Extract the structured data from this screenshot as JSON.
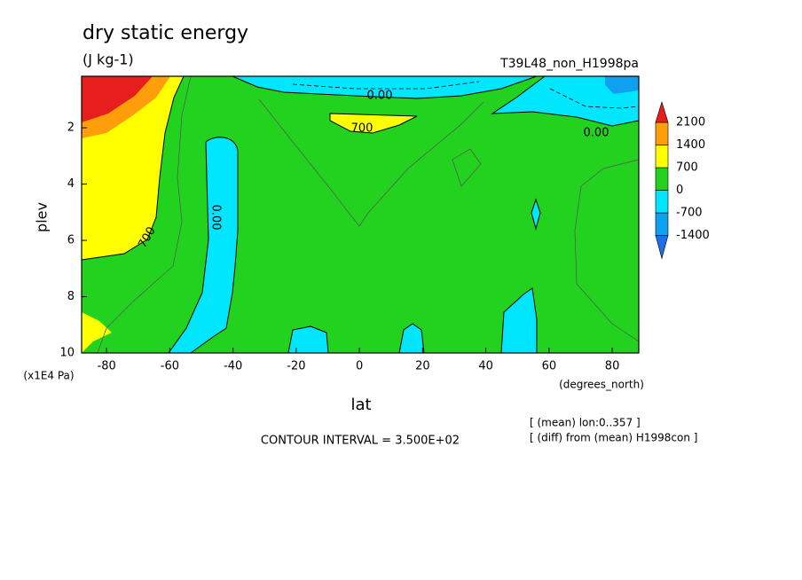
{
  "chart_data": {
    "type": "contour",
    "title": "dry static energy",
    "subtitle": "(J kg-1)",
    "run_label": "T39L48_non_H1998pa",
    "x_label": "lat",
    "x_unit": "(degrees_north)",
    "y_label": "plev",
    "y_unit": "(x1E4 Pa)",
    "xlim": [
      -87.9,
      88.4
    ],
    "xticks": [
      -80,
      -60,
      -40,
      -20,
      0,
      20,
      40,
      60,
      80
    ],
    "ylim": [
      0.17,
      10
    ],
    "y_inverted": true,
    "yticks": [
      2,
      4,
      6,
      8,
      10
    ],
    "levels": [
      -1400,
      -700,
      0,
      700,
      1400,
      2100
    ],
    "colors": [
      "#1e6ee6",
      "#10a0f0",
      "#00e6ff",
      "#22d21e",
      "#ffff00",
      "#ff9e0a",
      "#e61e1e"
    ],
    "contour_labels": [
      "0.00",
      "700",
      "0.00",
      "0.00",
      "700"
    ],
    "contour_interval": "CONTOUR INTERVAL = 3.500E+02",
    "notes": [
      "[ (mean) lon:0..357 ]",
      "[ (diff) from (mean) H1998con ]"
    ]
  }
}
